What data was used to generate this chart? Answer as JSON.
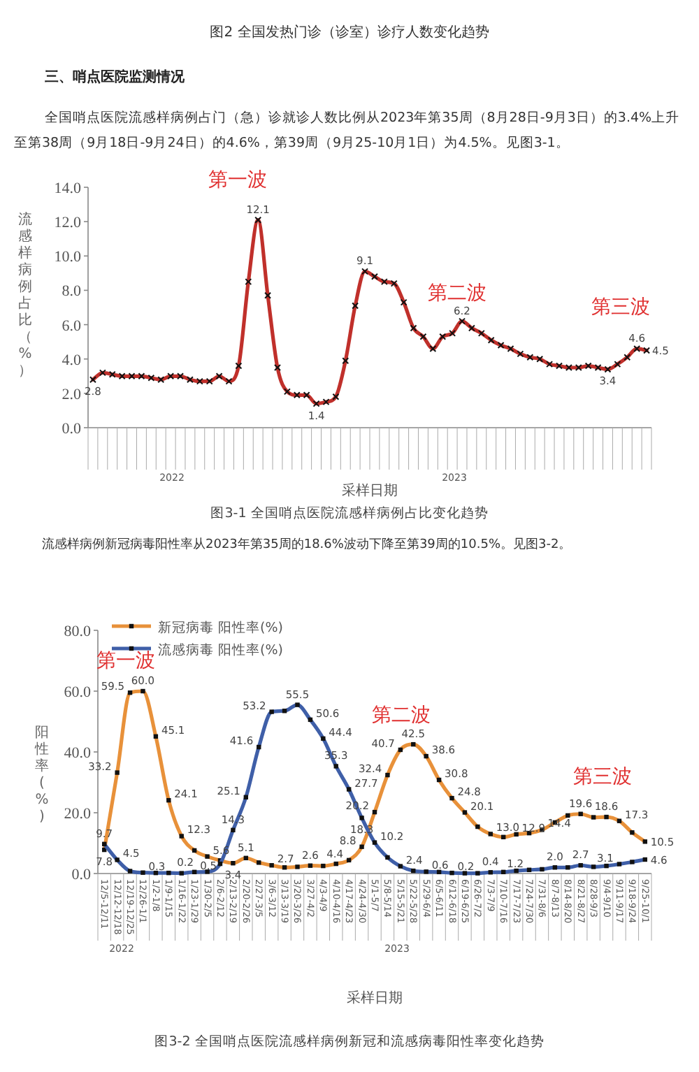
{
  "chart_data": [
    {
      "type": "line",
      "title": "图3-1 全国哨点医院流感样病例占比变化趋势",
      "xlabel": "采样日期",
      "ylabel": "流感样病例占比（%）",
      "annotations": [
        "图2 全国发热门诊（诊室）诊疗人数变化趋势",
        "三、哨点医院监测情况",
        "全国哨点医院流感样病例占门（急）诊就诊人数比例从2023年第35周（8月28日-9月3日）的3.4%上升至第38周（9月18日-9月24日）的4.6%，第39周（9月25-10月1日）为4.5%。见图3-1。",
        "第一波",
        "第二波",
        "第三波",
        "2022",
        "2023"
      ],
      "categories": [
        null,
        null,
        null,
        null,
        null,
        null,
        null,
        null,
        null,
        null,
        null,
        null,
        null,
        null,
        null,
        null,
        null,
        null,
        null,
        null,
        null,
        null,
        null,
        null,
        null,
        null,
        null,
        null,
        null,
        null,
        null,
        null,
        null,
        null,
        null,
        null,
        null,
        null,
        null,
        null,
        null,
        null,
        null,
        null,
        null,
        null,
        null,
        null,
        null,
        null,
        null,
        null,
        null,
        null,
        null,
        null,
        null,
        null
      ],
      "series": [
        {
          "color": "#c0302b",
          "values": [
            2.8,
            3.2,
            3.1,
            3.0,
            3.0,
            3.0,
            2.9,
            2.8,
            3.0,
            3.0,
            2.8,
            2.7,
            2.7,
            3.0,
            2.7,
            3.6,
            8.5,
            12.1,
            7.7,
            3.5,
            2.1,
            1.9,
            1.9,
            1.4,
            1.5,
            1.8,
            3.9,
            7.1,
            9.1,
            8.8,
            8.5,
            8.4,
            7.3,
            5.8,
            5.3,
            4.6,
            5.3,
            5.5,
            6.2,
            5.8,
            5.5,
            5.1,
            4.8,
            4.6,
            4.3,
            4.1,
            4.0,
            3.7,
            3.6,
            3.5,
            3.5,
            3.6,
            3.5,
            3.4,
            3.7,
            4.1,
            4.6,
            4.5
          ],
          "value_labels": [
            "2.8",
            null,
            null,
            null,
            null,
            null,
            null,
            null,
            null,
            null,
            null,
            null,
            null,
            null,
            null,
            null,
            null,
            "12.1",
            null,
            null,
            null,
            null,
            null,
            "1.4",
            null,
            null,
            null,
            null,
            "9.1",
            null,
            null,
            null,
            null,
            null,
            null,
            null,
            null,
            null,
            "6.2",
            null,
            null,
            null,
            null,
            null,
            null,
            null,
            null,
            null,
            null,
            null,
            null,
            null,
            null,
            "3.4",
            null,
            null,
            "4.6",
            "4.5"
          ]
        }
      ],
      "ylim": [
        0,
        14
      ],
      "yticks": [
        {
          "value": 0,
          "label": "0.0"
        },
        {
          "value": 2,
          "label": "2.0"
        },
        {
          "value": 4,
          "label": "4.0"
        },
        {
          "value": 6,
          "label": "6.0"
        },
        {
          "value": 8,
          "label": "8.0"
        },
        {
          "value": 10,
          "label": "10.0"
        },
        {
          "value": 12,
          "label": "12.0"
        },
        {
          "value": 14,
          "label": "14.0"
        }
      ],
      "marker": "cross"
    },
    {
      "type": "line",
      "title": "图3-2 全国哨点医院流感样病例新冠和流感病毒阳性率变化趋势",
      "xlabel": "采样日期",
      "ylabel": "阳性率(%)",
      "legend": "top left",
      "annotations": [
        "流感样病例新冠病毒阳性率从2023年第35周的18.6%波动下降至第39周的10.5%。见图3-2。",
        "第一波",
        "第二波",
        "第三波",
        "2022",
        "2023"
      ],
      "categories": [
        "12/5-12/11",
        "12/12-12/18",
        "12/19-12/25",
        "12/26-1/1",
        "1/2-1/8",
        "1/9-1/15",
        "1/16-1/22",
        "1/23-1/29",
        "1/30-2/5",
        "2/6-2/12",
        "2/13-2/19",
        "2/20-2/26",
        "2/27-3/5",
        "3/6-3/12",
        "3/13-3/19",
        "3/20-3/26",
        "3/27-4/2",
        "4/3-4/9",
        "4/10-4/16",
        "4/17-4/23",
        "4/24-4/30",
        "5/1-5/7",
        "5/8-5/14",
        "5/15-5/21",
        "5/22-5/28",
        "5/29-6/4",
        "6/5-6/11",
        "6/12-6/18",
        "6/19-6/25",
        "6/26-7/2",
        "7/3-7/9",
        "7/10-7/16",
        "7/17-7/23",
        "7/24-7/30",
        "7/31-8/6",
        "8/7-8/13",
        "8/14-8/20",
        "8/21-8/27",
        "8/28-9/3",
        "9/4-9/10",
        "9/11-9/17",
        "9/18-9/24",
        "9/25-10/1"
      ],
      "series": [
        {
          "name": "新冠病毒 阳性率(%)",
          "color": "#e8913a",
          "values": [
            7.8,
            33.2,
            59.5,
            60.0,
            45.1,
            24.1,
            12.3,
            7.6,
            5.6,
            4.3,
            3.4,
            5.1,
            3.6,
            2.7,
            2.0,
            2.2,
            2.6,
            2.5,
            3.2,
            4.4,
            8.8,
            20.2,
            32.4,
            40.7,
            42.5,
            38.6,
            30.8,
            24.8,
            20.1,
            15.4,
            13.0,
            12.0,
            12.9,
            13.3,
            14.4,
            16.8,
            19.1,
            19.6,
            18.5,
            18.6,
            17.3,
            13.5,
            10.5
          ],
          "value_labels": [
            "7.8",
            "33.2",
            "59.5",
            "60.0",
            "45.1",
            "24.1",
            "12.3",
            null,
            "5.6",
            null,
            "3.4",
            "5.1",
            null,
            "2.7",
            null,
            null,
            "2.6",
            null,
            null,
            "4.4",
            "8.8",
            "20.2",
            "32.4",
            "40.7",
            "42.5",
            "38.6",
            "30.8",
            "24.8",
            "20.1",
            null,
            "13.0",
            null,
            "12.9",
            null,
            "14.4",
            null,
            null,
            "19.6",
            null,
            "18.6",
            "17.3",
            null,
            "10.5"
          ]
        },
        {
          "name": "流感病毒 阳性率(%)",
          "color": "#3f5fa8",
          "values": [
            9.7,
            4.5,
            0.8,
            0.3,
            0.2,
            0.2,
            0.1,
            0.5,
            0.6,
            3.2,
            14.3,
            25.1,
            41.6,
            53.2,
            53.5,
            55.5,
            50.6,
            44.4,
            35.3,
            27.7,
            18.3,
            10.2,
            5.3,
            2.4,
            0.9,
            0.6,
            0.5,
            0.2,
            0.1,
            0.1,
            0.4,
            0.5,
            0.9,
            1.2,
            1.4,
            2.0,
            2.0,
            2.7,
            2.2,
            2.5,
            3.1,
            3.8,
            4.6
          ],
          "value_labels": [
            "9.7",
            "4.5",
            null,
            "0.3",
            null,
            "0.2",
            null,
            "0.5",
            null,
            null,
            "14.3",
            "25.1",
            "41.6",
            "53.2",
            null,
            "55.5",
            "50.6",
            "44.4",
            "35.3",
            "27.7",
            "18.3",
            "10.2",
            null,
            "2.4",
            null,
            "0.6",
            null,
            "0.2",
            null,
            null,
            "0.4",
            null,
            null,
            "1.2",
            null,
            "2.0",
            null,
            "2.7",
            null,
            null,
            "3.1",
            null,
            "4.6"
          ]
        }
      ],
      "ylim": [
        0,
        80
      ],
      "yticks": [
        {
          "value": 0,
          "label": "0.0"
        },
        {
          "value": 20,
          "label": "20.0"
        },
        {
          "value": 40,
          "label": "40.0"
        },
        {
          "value": 60,
          "label": "60.0"
        },
        {
          "value": 80,
          "label": "80.0"
        }
      ],
      "marker": "square"
    }
  ]
}
